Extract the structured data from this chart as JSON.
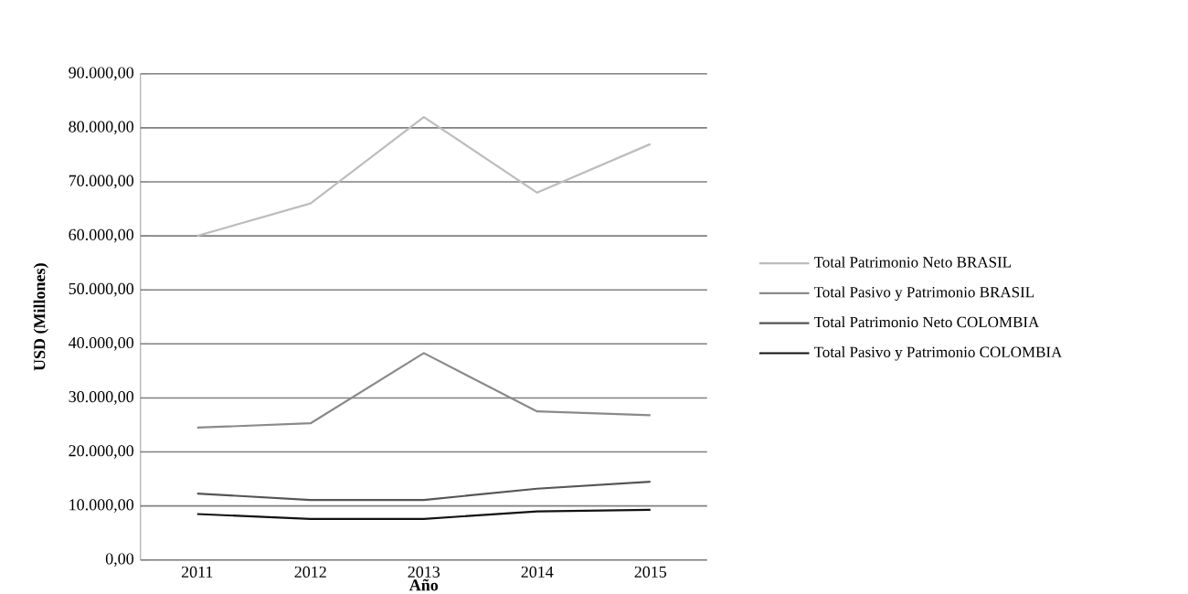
{
  "chart_data": {
    "type": "line",
    "xlabel": "Año",
    "ylabel": "USD (Millones)",
    "categories": [
      "2011",
      "2012",
      "2013",
      "2014",
      "2015"
    ],
    "series": [
      {
        "name": "Total Patrimonio Neto BRASIL",
        "color": "#bdbdbd",
        "values": [
          60000,
          66000,
          82000,
          68000,
          77000
        ]
      },
      {
        "name": "Total Pasivo y Patrimonio  BRASIL",
        "color": "#8a8a8a",
        "values": [
          24500,
          25300,
          38300,
          27500,
          26800
        ]
      },
      {
        "name": "Total Patrimonio Neto COLOMBIA",
        "color": "#555555",
        "values": [
          12300,
          11100,
          11100,
          13200,
          14500
        ]
      },
      {
        "name": "Total Pasivo y Patrimonio COLOMBIA",
        "color": "#111111",
        "values": [
          8500,
          7600,
          7600,
          9000,
          9300
        ]
      }
    ],
    "ylim": [
      0,
      90000
    ],
    "yticks": [
      {
        "value": 0,
        "label": "0,00"
      },
      {
        "value": 10000,
        "label": "10.000,00"
      },
      {
        "value": 20000,
        "label": "20.000,00"
      },
      {
        "value": 30000,
        "label": "30.000,00"
      },
      {
        "value": 40000,
        "label": "40.000,00"
      },
      {
        "value": 50000,
        "label": "50.000,00"
      },
      {
        "value": 60000,
        "label": "60.000,00"
      },
      {
        "value": 70000,
        "label": "70.000,00"
      },
      {
        "value": 80000,
        "label": "80.000,00"
      },
      {
        "value": 90000,
        "label": "90.000,00"
      }
    ],
    "grid": "y",
    "legend": "right",
    "marker": "none",
    "line_style": "solid"
  }
}
